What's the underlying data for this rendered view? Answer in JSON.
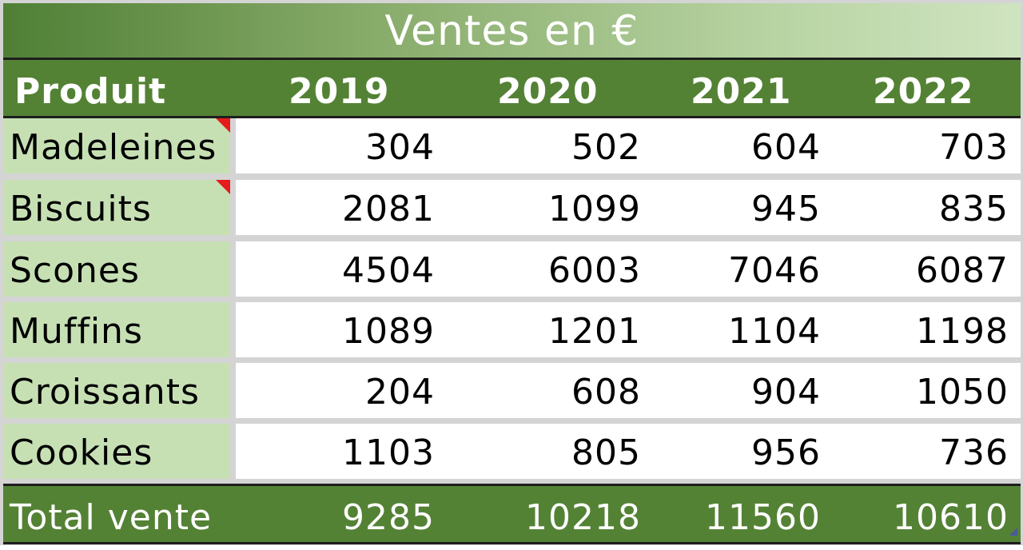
{
  "table": {
    "title": "Ventes en €",
    "headers": [
      "Produit",
      "2019",
      "2020",
      "2021",
      "2022"
    ],
    "rows": [
      {
        "product": "Madeleines",
        "values": [
          "304",
          "502",
          "604",
          "703"
        ],
        "has_comment": true
      },
      {
        "product": "Biscuits",
        "values": [
          "2081",
          "1099",
          "945",
          "835"
        ],
        "has_comment": true
      },
      {
        "product": "Scones",
        "values": [
          "4504",
          "6003",
          "7046",
          "6087"
        ],
        "has_comment": false
      },
      {
        "product": "Muffins",
        "values": [
          "1089",
          "1201",
          "1104",
          "1198"
        ],
        "has_comment": false
      },
      {
        "product": "Croissants",
        "values": [
          "204",
          "608",
          "904",
          "1050"
        ],
        "has_comment": false
      },
      {
        "product": "Cookies",
        "values": [
          "1103",
          "805",
          "956",
          "736"
        ],
        "has_comment": false
      }
    ],
    "total": {
      "label": "Total vente",
      "values": [
        "9285",
        "10218",
        "11560",
        "10610"
      ]
    }
  },
  "colors": {
    "header_green": "#548235",
    "label_light_green": "#c6e0b4",
    "comment_indicator": "#e61b1b",
    "text_white": "#ffffff"
  }
}
